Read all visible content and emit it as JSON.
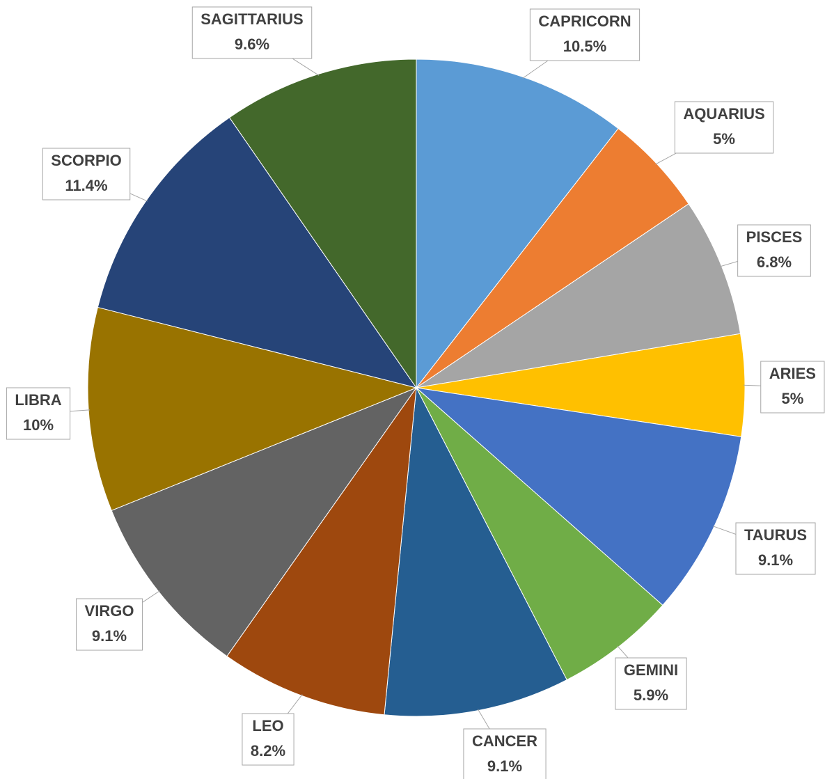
{
  "chart_data": {
    "type": "pie",
    "categories": [
      "CAPRICORN",
      "AQUARIUS",
      "PISCES",
      "ARIES",
      "TAURUS",
      "GEMINI",
      "CANCER",
      "LEO",
      "VIRGO",
      "LIBRA",
      "SCORPIO",
      "SAGITTARIUS"
    ],
    "values": [
      10.5,
      5,
      6.8,
      5,
      9.1,
      5.9,
      9.1,
      8.2,
      9.1,
      10,
      11.4,
      9.6
    ],
    "value_labels": [
      "10.5%",
      "5%",
      "6.8%",
      "5%",
      "9.1%",
      "5.9%",
      "9.1%",
      "8.2%",
      "9.1%",
      "10%",
      "11.4%",
      "9.6%"
    ],
    "colors": [
      "#5b9bd5",
      "#ed7d31",
      "#a5a5a5",
      "#ffc000",
      "#4472c4",
      "#70ad47",
      "#255e91",
      "#9e480e",
      "#636363",
      "#997300",
      "#264478",
      "#43682b"
    ]
  }
}
